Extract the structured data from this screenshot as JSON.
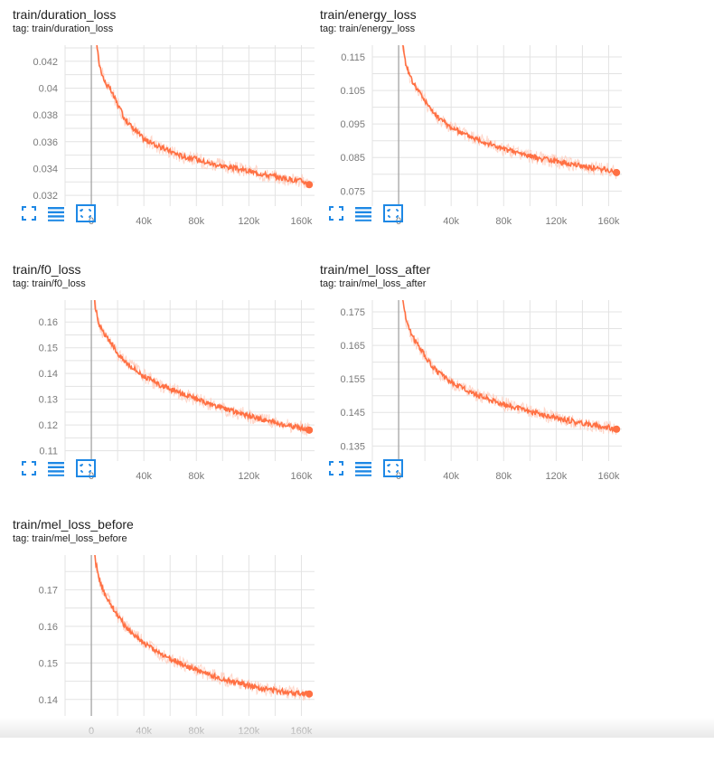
{
  "theme": {
    "series_color": "#ff7043",
    "smooth_color": "#ff7043",
    "raw_color": "#ffccbc",
    "grid_color": "#e3e3e3",
    "axis_color": "#9e9e9e",
    "icon_color": "#1e88e5"
  },
  "toolbar_icons": [
    "fullscreen-icon",
    "data-list-icon",
    "fit-domain-icon"
  ],
  "chart_data": [
    {
      "type": "line",
      "title": "train/duration_loss",
      "tag": "tag: train/duration_loss",
      "xlim": [
        -20000,
        170000
      ],
      "ylim": [
        0.0312,
        0.0432
      ],
      "x_ticks": [
        0,
        40000,
        80000,
        120000,
        160000
      ],
      "x_tick_labels": [
        "0",
        "40k",
        "80k",
        "120k",
        "160k"
      ],
      "y_ticks": [
        0.032,
        0.034,
        0.036,
        0.038,
        0.04,
        0.042
      ],
      "y_tick_labels": [
        "0.032",
        "0.034",
        "0.036",
        "0.038",
        "0.04",
        "0.042"
      ],
      "grid": true,
      "series": [
        {
          "x": [
            0,
            3000,
            6000,
            10000,
            15000,
            20000,
            25000,
            30000,
            40000,
            50000,
            60000,
            70000,
            80000,
            90000,
            100000,
            110000,
            120000,
            130000,
            140000,
            150000,
            160000,
            166000
          ],
          "y": [
            0.0475,
            0.0442,
            0.0418,
            0.0405,
            0.0398,
            0.0388,
            0.0378,
            0.0372,
            0.0362,
            0.0357,
            0.0353,
            0.0349,
            0.0347,
            0.0344,
            0.0342,
            0.034,
            0.0338,
            0.0336,
            0.0334,
            0.0332,
            0.0331,
            0.0328
          ]
        }
      ]
    },
    {
      "type": "line",
      "title": "train/energy_loss",
      "tag": "tag: train/energy_loss",
      "xlim": [
        -20000,
        170000
      ],
      "ylim": [
        0.0705,
        0.1185
      ],
      "x_ticks": [
        0,
        40000,
        80000,
        120000,
        160000
      ],
      "x_tick_labels": [
        "0",
        "40k",
        "80k",
        "120k",
        "160k"
      ],
      "y_ticks": [
        0.075,
        0.085,
        0.095,
        0.105,
        0.115
      ],
      "y_tick_labels": [
        "0.075",
        "0.085",
        "0.095",
        "0.105",
        "0.115"
      ],
      "grid": true,
      "series": [
        {
          "x": [
            0,
            3000,
            6000,
            10000,
            15000,
            20000,
            25000,
            30000,
            40000,
            50000,
            60000,
            70000,
            80000,
            90000,
            100000,
            110000,
            120000,
            130000,
            140000,
            150000,
            160000,
            166000
          ],
          "y": [
            0.13,
            0.119,
            0.112,
            0.108,
            0.105,
            0.102,
            0.099,
            0.097,
            0.094,
            0.092,
            0.0905,
            0.089,
            0.0875,
            0.0865,
            0.0855,
            0.0845,
            0.0838,
            0.0832,
            0.0825,
            0.0818,
            0.0812,
            0.0805
          ]
        }
      ]
    },
    {
      "type": "line",
      "title": "train/f0_loss",
      "tag": "tag: train/f0_loss",
      "xlim": [
        -20000,
        170000
      ],
      "ylim": [
        0.106,
        0.1685
      ],
      "x_ticks": [
        0,
        40000,
        80000,
        120000,
        160000
      ],
      "x_tick_labels": [
        "0",
        "40k",
        "80k",
        "120k",
        "160k"
      ],
      "y_ticks": [
        0.11,
        0.12,
        0.13,
        0.14,
        0.15,
        0.16
      ],
      "y_tick_labels": [
        "0.11",
        "0.12",
        "0.13",
        "0.14",
        "0.15",
        "0.16"
      ],
      "grid": true,
      "series": [
        {
          "x": [
            0,
            3000,
            6000,
            10000,
            15000,
            20000,
            25000,
            30000,
            40000,
            50000,
            60000,
            70000,
            80000,
            90000,
            100000,
            110000,
            120000,
            130000,
            140000,
            150000,
            160000,
            166000
          ],
          "y": [
            0.178,
            0.166,
            0.159,
            0.155,
            0.152,
            0.148,
            0.145,
            0.143,
            0.139,
            0.136,
            0.134,
            0.132,
            0.13,
            0.128,
            0.1265,
            0.125,
            0.1235,
            0.1222,
            0.121,
            0.1198,
            0.1188,
            0.118
          ]
        }
      ]
    },
    {
      "type": "line",
      "title": "train/mel_loss_after",
      "tag": "tag: train/mel_loss_after",
      "xlim": [
        -20000,
        170000
      ],
      "ylim": [
        0.1305,
        0.1785
      ],
      "x_ticks": [
        0,
        40000,
        80000,
        120000,
        160000
      ],
      "x_tick_labels": [
        "0",
        "40k",
        "80k",
        "120k",
        "160k"
      ],
      "y_ticks": [
        0.135,
        0.145,
        0.155,
        0.165,
        0.175
      ],
      "y_tick_labels": [
        "0.135",
        "0.145",
        "0.155",
        "0.165",
        "0.175"
      ],
      "grid": true,
      "series": [
        {
          "x": [
            0,
            3000,
            6000,
            10000,
            15000,
            20000,
            25000,
            30000,
            40000,
            50000,
            60000,
            70000,
            80000,
            90000,
            100000,
            110000,
            120000,
            130000,
            140000,
            150000,
            160000,
            166000
          ],
          "y": [
            0.19,
            0.179,
            0.172,
            0.168,
            0.165,
            0.162,
            0.159,
            0.157,
            0.154,
            0.152,
            0.1503,
            0.1488,
            0.1475,
            0.1463,
            0.1453,
            0.1443,
            0.1433,
            0.1425,
            0.1418,
            0.1411,
            0.1405,
            0.14
          ]
        }
      ]
    },
    {
      "type": "line",
      "title": "train/mel_loss_before",
      "tag": "tag: train/mel_loss_before",
      "xlim": [
        -20000,
        170000
      ],
      "ylim": [
        0.1355,
        0.1795
      ],
      "x_ticks": [
        0,
        40000,
        80000,
        120000,
        160000
      ],
      "x_tick_labels": [
        "0",
        "40k",
        "80k",
        "120k",
        "160k"
      ],
      "y_ticks": [
        0.14,
        0.15,
        0.16,
        0.17
      ],
      "y_tick_labels": [
        "0.14",
        "0.15",
        "0.16",
        "0.17"
      ],
      "grid": true,
      "series": [
        {
          "x": [
            0,
            3000,
            6000,
            10000,
            15000,
            20000,
            25000,
            30000,
            40000,
            50000,
            60000,
            70000,
            80000,
            90000,
            100000,
            110000,
            120000,
            130000,
            140000,
            150000,
            160000,
            166000
          ],
          "y": [
            0.188,
            0.178,
            0.173,
            0.169,
            0.166,
            0.163,
            0.1605,
            0.1585,
            0.1555,
            0.153,
            0.1512,
            0.1495,
            0.148,
            0.1468,
            0.1457,
            0.1447,
            0.1438,
            0.143,
            0.1425,
            0.142,
            0.1417,
            0.1415
          ]
        }
      ]
    }
  ]
}
